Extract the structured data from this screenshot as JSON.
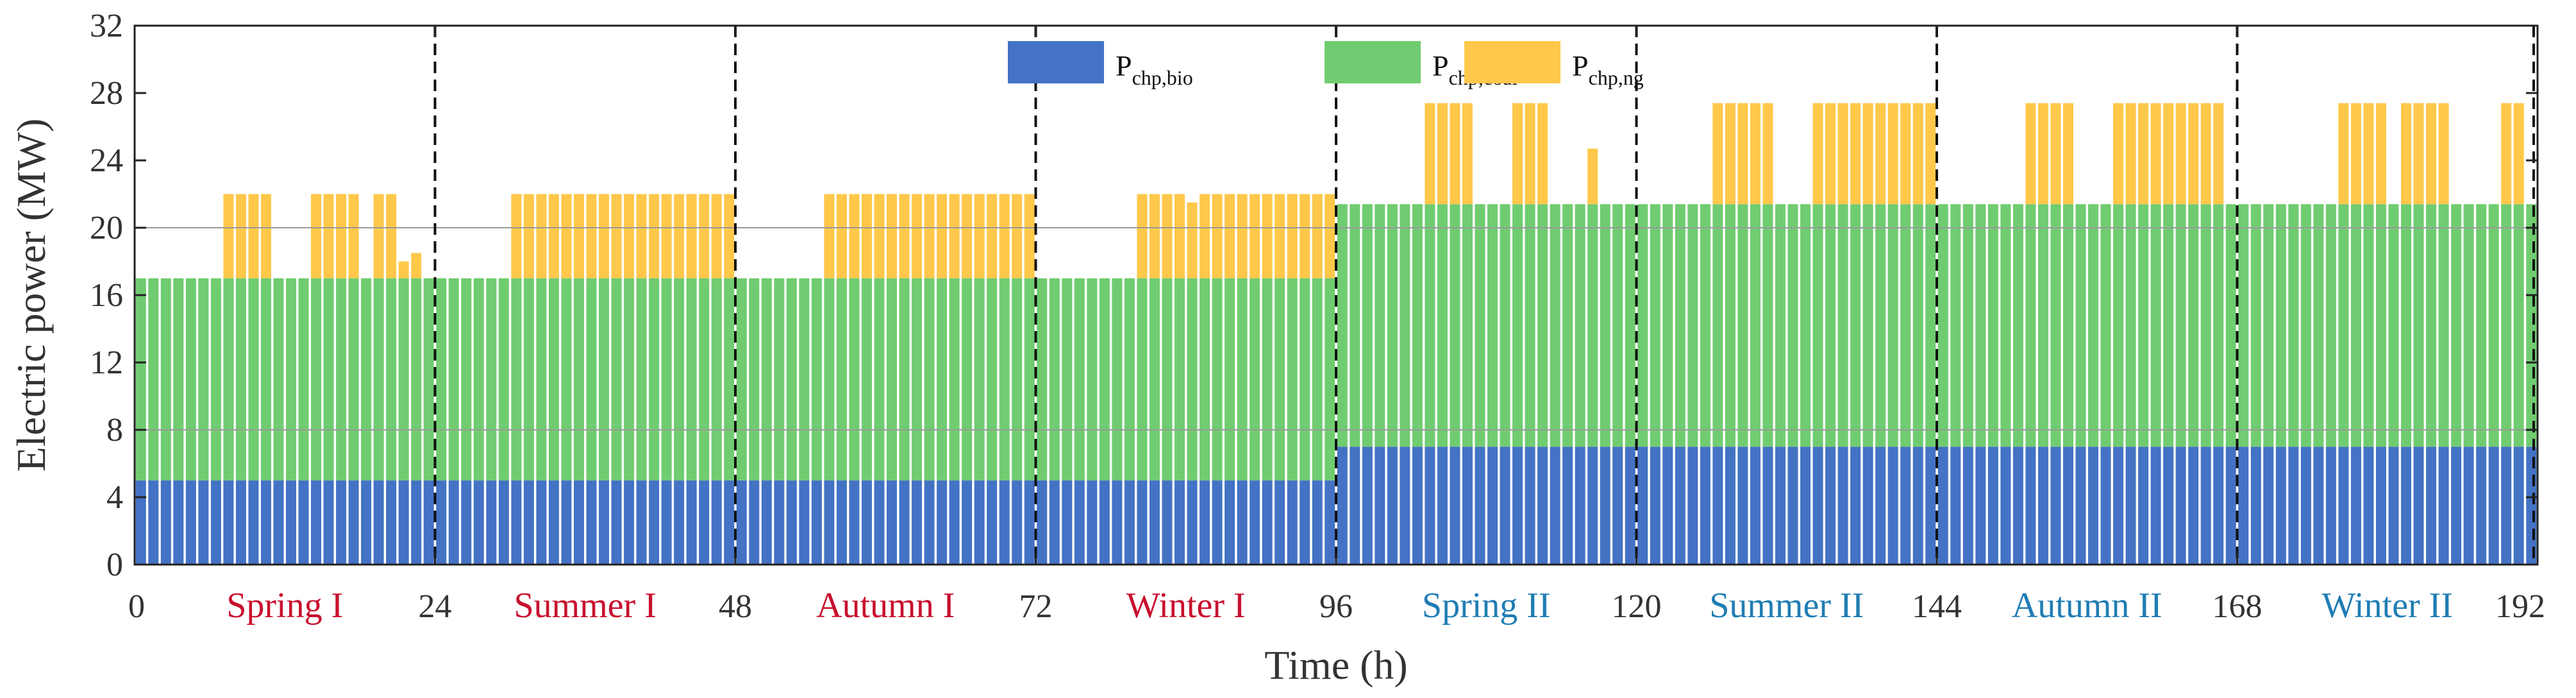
{
  "chart_data": {
    "type": "bar",
    "stacked": true,
    "title": "",
    "xlabel": "Time (h)",
    "ylabel": "Electric power (MW)",
    "xlim": [
      0,
      192
    ],
    "ylim": [
      0,
      32
    ],
    "xticks": [
      0,
      24,
      48,
      72,
      96,
      120,
      144,
      168,
      192
    ],
    "yticks": [
      0,
      4,
      8,
      12,
      16,
      20,
      24,
      28,
      32
    ],
    "legend_position": "top-center",
    "series": [
      {
        "name": "P",
        "subscript": "chp,bio",
        "color": "#4472C4"
      },
      {
        "name": "P",
        "subscript": "chp,coal",
        "color": "#70CC70"
      },
      {
        "name": "P",
        "subscript": "chp,ng",
        "color": "#FFC84A"
      }
    ],
    "seasons": [
      {
        "label": "Spring I",
        "start": 0,
        "end": 24,
        "color": "#C8102E"
      },
      {
        "label": "Summer I",
        "start": 24,
        "end": 48,
        "color": "#C8102E"
      },
      {
        "label": "Autumn I",
        "start": 48,
        "end": 72,
        "color": "#C8102E"
      },
      {
        "label": "Winter I",
        "start": 72,
        "end": 96,
        "color": "#C8102E"
      },
      {
        "label": "Spring II",
        "start": 96,
        "end": 120,
        "color": "#1F7DB4"
      },
      {
        "label": "Summer II",
        "start": 120,
        "end": 144,
        "color": "#1F7DB4"
      },
      {
        "label": "Autumn II",
        "start": 144,
        "end": 168,
        "color": "#1F7DB4"
      },
      {
        "label": "Winter II",
        "start": 168,
        "end": 192,
        "color": "#1F7DB4"
      }
    ],
    "season_separators": [
      24,
      48,
      72,
      96,
      120,
      144,
      168,
      192
    ],
    "reference_lines": [
      20,
      8
    ],
    "base": {
      "bio": [
        5,
        7
      ],
      "coal": [
        12,
        14.4
      ],
      "note": "first value used for hours 0-95, second for hours 96-191"
    },
    "ng_segments": [
      {
        "start": 7,
        "end": 11,
        "value": 5
      },
      {
        "start": 14,
        "end": 18,
        "value": 5
      },
      {
        "start": 19,
        "end": 21,
        "value": 5
      },
      {
        "start": 21,
        "end": 22,
        "value": 1
      },
      {
        "start": 22,
        "end": 23,
        "value": 1.5
      },
      {
        "start": 30,
        "end": 48,
        "value": 5
      },
      {
        "start": 55,
        "end": 72,
        "value": 5
      },
      {
        "start": 80,
        "end": 84,
        "value": 5
      },
      {
        "start": 84,
        "end": 85,
        "value": 4.5
      },
      {
        "start": 85,
        "end": 96,
        "value": 5
      },
      {
        "start": 103,
        "end": 107,
        "value": 6
      },
      {
        "start": 110,
        "end": 113,
        "value": 6
      },
      {
        "start": 116,
        "end": 117,
        "value": 3.3
      },
      {
        "start": 126,
        "end": 131,
        "value": 6
      },
      {
        "start": 134,
        "end": 144,
        "value": 6
      },
      {
        "start": 151,
        "end": 155,
        "value": 6
      },
      {
        "start": 158,
        "end": 167,
        "value": 6
      },
      {
        "start": 176,
        "end": 180,
        "value": 6
      },
      {
        "start": 181,
        "end": 185,
        "value": 6
      },
      {
        "start": 189,
        "end": 191,
        "value": 6
      }
    ]
  }
}
